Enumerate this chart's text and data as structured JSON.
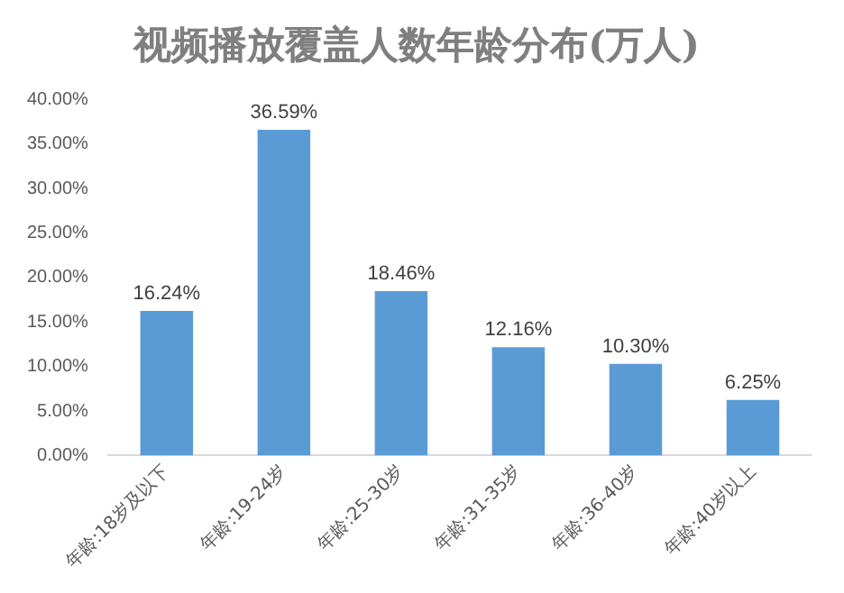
{
  "chart_data": {
    "type": "bar",
    "title": "视频播放覆盖人数年龄分布(万人)",
    "categories": [
      "年龄:18岁及以下",
      "年龄:19-24岁",
      "年龄:25-30岁",
      "年龄:31-35岁",
      "年龄:36-40岁",
      "年龄:40岁以上"
    ],
    "values": [
      16.24,
      36.59,
      18.46,
      12.16,
      10.3,
      6.25
    ],
    "value_labels": [
      "16.24%",
      "36.59%",
      "18.46%",
      "12.16%",
      "10.30%",
      "6.25%"
    ],
    "color": "#5b9bd5",
    "ylim": [
      0,
      40
    ],
    "yticks": [
      {
        "value": 0,
        "label": "0.00%"
      },
      {
        "value": 5,
        "label": "5.00%"
      },
      {
        "value": 10,
        "label": "10.00%"
      },
      {
        "value": 15,
        "label": "15.00%"
      },
      {
        "value": 20,
        "label": "20.00%"
      },
      {
        "value": 25,
        "label": "25.00%"
      },
      {
        "value": 30,
        "label": "30.00%"
      },
      {
        "value": 35,
        "label": "35.00%"
      },
      {
        "value": 40,
        "label": "40.00%"
      }
    ],
    "grid": false,
    "legend": false
  }
}
